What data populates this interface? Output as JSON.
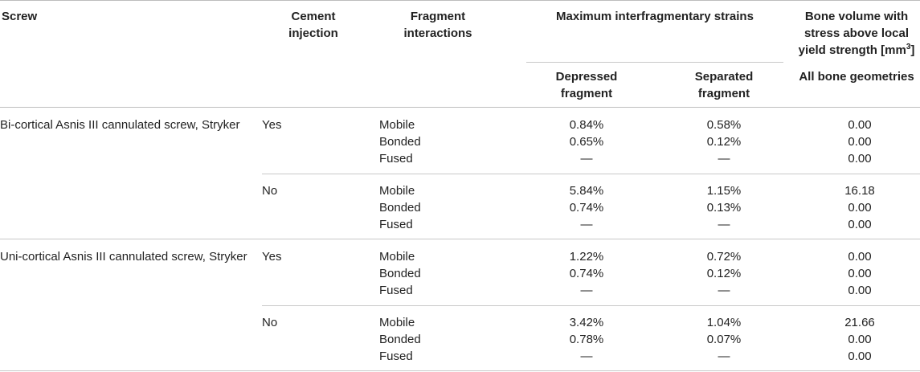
{
  "header": {
    "screw": "Screw",
    "cement_line1": "Cement",
    "cement_line2": "injection",
    "frag_line1": "Fragment",
    "frag_line2": "interactions",
    "max_strains": "Maximum interfragmentary strains",
    "volume_line1": "Bone volume with",
    "volume_line2": "stress above local",
    "volume_line3": "yield strength [mm",
    "volume_sup": "3",
    "volume_close": "]",
    "depressed_line1": "Depressed",
    "depressed_line2": "fragment",
    "separated_line1": "Separated",
    "separated_line2": "fragment",
    "all_geometries": "All bone geometries"
  },
  "rows": [
    {
      "screw": "Bi-cortical Asnis III cannulated screw, Stryker",
      "cement": "Yes",
      "interactions": [
        "Mobile",
        "Bonded",
        "Fused"
      ],
      "depressed": [
        "0.84%",
        "0.65%",
        "—"
      ],
      "separated": [
        "0.58%",
        "0.12%",
        "—"
      ],
      "volume": [
        "0.00",
        "0.00",
        "0.00"
      ]
    },
    {
      "screw": "",
      "cement": "No",
      "interactions": [
        "Mobile",
        "Bonded",
        "Fused"
      ],
      "depressed": [
        "5.84%",
        "0.74%",
        "—"
      ],
      "separated": [
        "1.15%",
        "0.13%",
        "—"
      ],
      "volume": [
        "16.18",
        "0.00",
        "0.00"
      ]
    },
    {
      "screw": "Uni-cortical Asnis III cannulated screw, Stryker",
      "cement": "Yes",
      "interactions": [
        "Mobile",
        "Bonded",
        "Fused"
      ],
      "depressed": [
        "1.22%",
        "0.74%",
        "—"
      ],
      "separated": [
        "0.72%",
        "0.12%",
        "—"
      ],
      "volume": [
        "0.00",
        "0.00",
        "0.00"
      ]
    },
    {
      "screw": "",
      "cement": "No",
      "interactions": [
        "Mobile",
        "Bonded",
        "Fused"
      ],
      "depressed": [
        "3.42%",
        "0.78%",
        "—"
      ],
      "separated": [
        "1.04%",
        "0.07%",
        "—"
      ],
      "volume": [
        "21.66",
        "0.00",
        "0.00"
      ]
    }
  ]
}
